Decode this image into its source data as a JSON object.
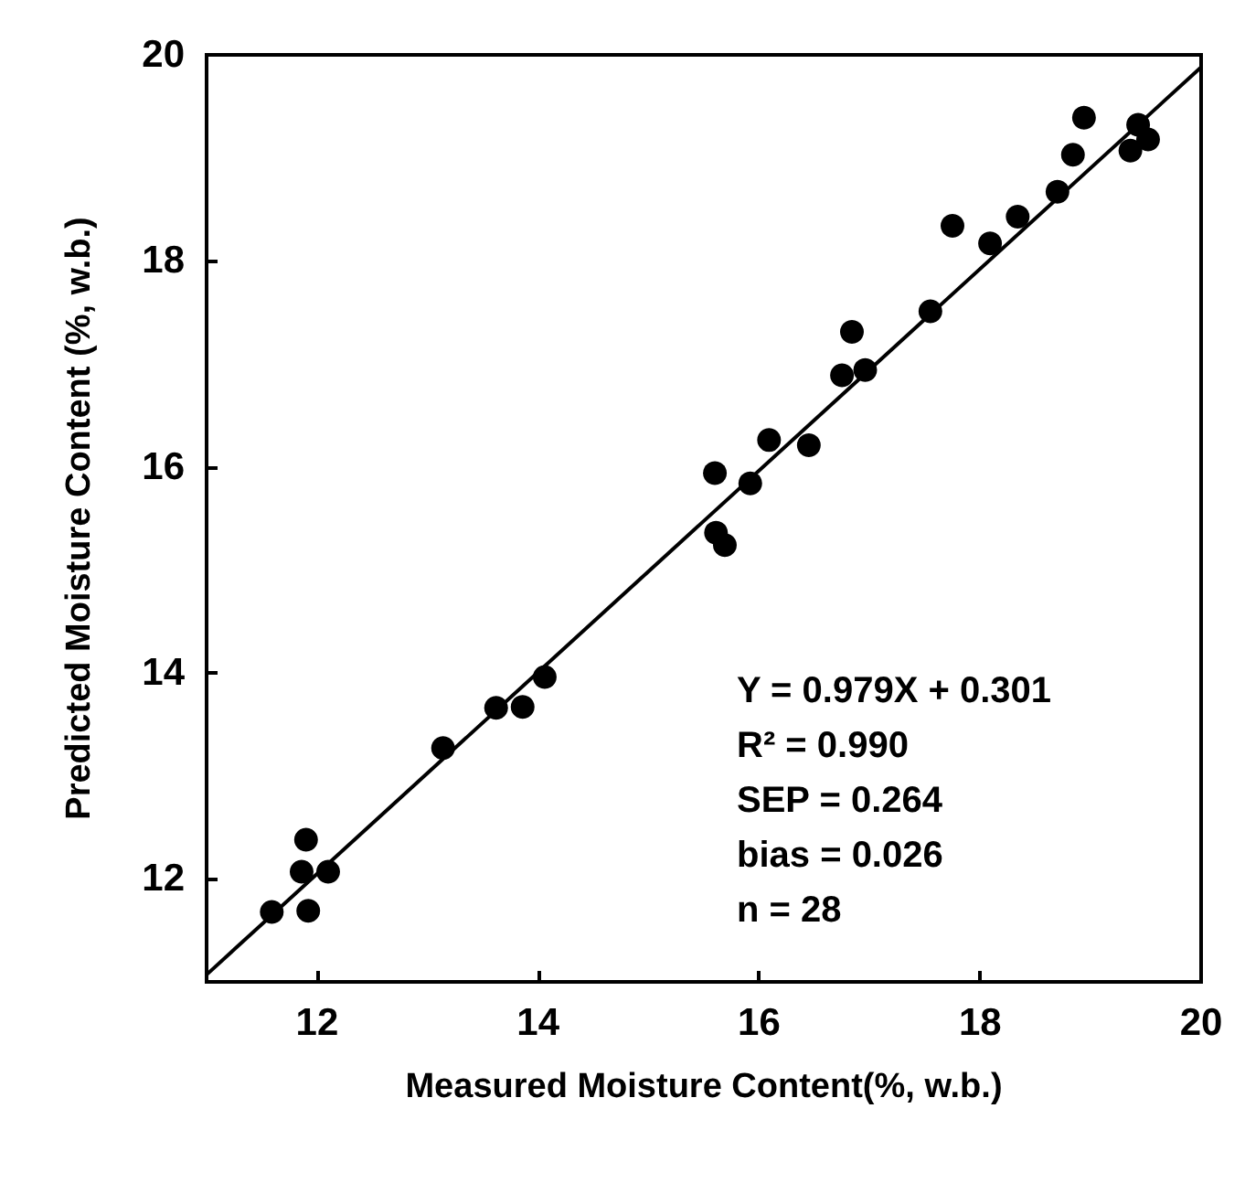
{
  "chart_data": {
    "type": "scatter",
    "xlabel": "Measured Moisture Content(%, w.b.)",
    "ylabel": "Predicted Moisture Content (%, w.b.)",
    "xlim": [
      11,
      20
    ],
    "xticks": [
      12,
      14,
      16,
      18,
      20
    ],
    "ylim": [
      11,
      20
    ],
    "yticks": [
      12,
      14,
      16,
      18,
      20
    ],
    "grid": false,
    "marker": "circle",
    "series": [
      {
        "color": "#000000",
        "x": [
          11.59,
          11.9,
          11.86,
          12.1,
          11.92,
          13.14,
          13.62,
          13.86,
          14.06,
          15.6,
          15.61,
          15.69,
          15.92,
          16.09,
          16.45,
          16.75,
          16.84,
          16.96,
          17.55,
          17.75,
          18.09,
          18.34,
          18.7,
          18.84,
          18.94,
          19.36,
          19.43,
          19.52
        ],
        "values": [
          11.68,
          12.38,
          12.07,
          12.07,
          11.69,
          13.27,
          13.66,
          13.67,
          13.96,
          15.94,
          15.36,
          15.24,
          15.84,
          16.26,
          16.21,
          16.89,
          17.31,
          16.94,
          17.51,
          18.34,
          18.17,
          18.43,
          18.67,
          19.03,
          19.39,
          19.07,
          19.32,
          19.18
        ]
      },
      {
        "type": "line",
        "marker": "none",
        "color": "#000000",
        "x": [
          11,
          20
        ],
        "values": [
          11.07,
          19.88
        ]
      }
    ],
    "annotations": [
      "Y = 0.979X + 0.301",
      "R² = 0.990",
      "SEP = 0.264",
      "bias = 0.026",
      "n = 28"
    ]
  }
}
